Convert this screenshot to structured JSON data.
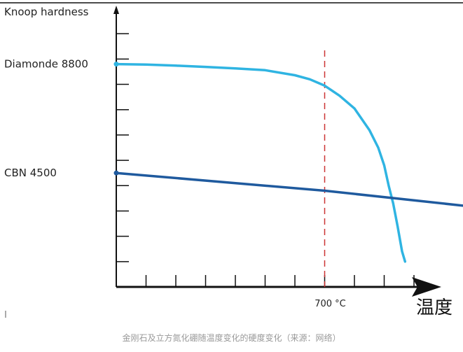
{
  "chart_data": {
    "type": "line",
    "ylabel": "Knoop hardness",
    "xlabel": "温度",
    "ylim": [
      0,
      11000
    ],
    "xlim": [
      0,
      1000
    ],
    "grid": false,
    "legend": "none",
    "series": [
      {
        "name": "Diamonde 8800",
        "color": "#2fb4e2",
        "x": [
          0,
          100,
          200,
          300,
          400,
          500,
          600,
          650,
          700,
          750,
          800,
          850,
          880,
          900,
          915,
          930,
          945,
          960,
          970
        ],
        "y": [
          8800,
          8780,
          8740,
          8690,
          8630,
          8560,
          8360,
          8200,
          7950,
          7550,
          7050,
          6200,
          5500,
          4800,
          4000,
          3300,
          2400,
          1400,
          1000
        ]
      },
      {
        "name": "CBN 4500",
        "color": "#1f5a9e",
        "x": [
          0,
          700,
          1250
        ],
        "y": [
          4500,
          3800,
          3100
        ]
      }
    ],
    "annotations": [
      {
        "text": "700 °C",
        "x": 700,
        "style": "dashed-vertical",
        "color": "#cc3333"
      }
    ]
  },
  "caption": "金刚石及立方氮化硼随温度变化的硬度变化（来源：网络）"
}
